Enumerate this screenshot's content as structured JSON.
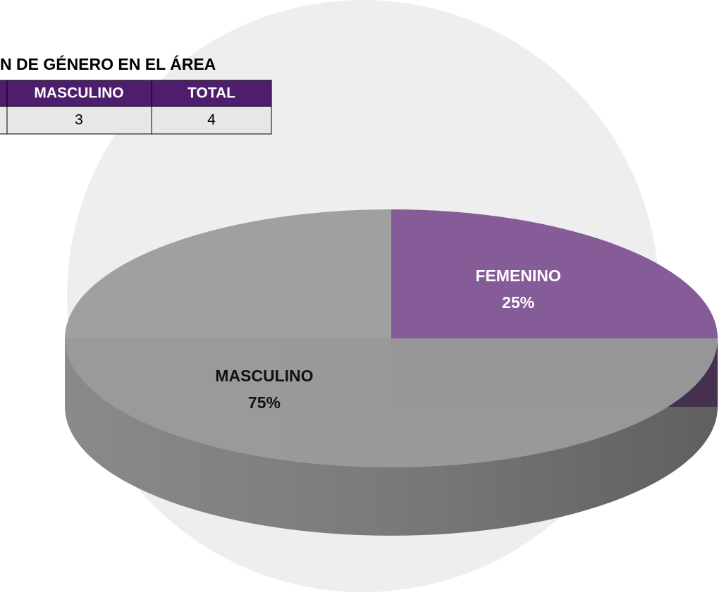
{
  "table": {
    "title": "N DE GÉNERO EN EL ÁREA",
    "header": [
      "MASCULINO",
      "TOTAL"
    ],
    "rows": [
      [
        3,
        4
      ]
    ]
  },
  "chart_data": {
    "type": "pie",
    "categories": [
      "FEMENINO",
      "MASCULINO"
    ],
    "values": [
      25,
      75
    ],
    "value_labels": [
      "25%",
      "75%"
    ],
    "colors": [
      "#7e5292",
      "#9b9b9b"
    ]
  }
}
